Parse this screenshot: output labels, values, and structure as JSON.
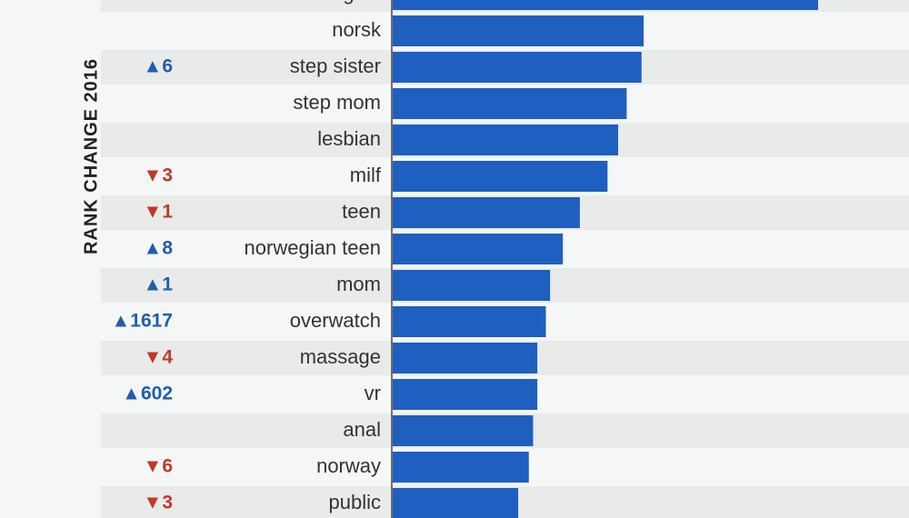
{
  "chart_data": {
    "type": "bar",
    "orientation": "horizontal",
    "ylabel": "RANK CHANGE 2016",
    "bar_color": "#1f5fbf",
    "row_band_color": "#e9eaea",
    "up_color": "#1f5fa8",
    "down_color": "#c0392b",
    "xlim": [
      0,
      100
    ],
    "rows": [
      {
        "category": "norwegian",
        "value": 100,
        "change_dir": "",
        "change": ""
      },
      {
        "category": "norsk",
        "value": 59,
        "change_dir": "",
        "change": ""
      },
      {
        "category": "step sister",
        "value": 58.5,
        "change_dir": "up",
        "change": "6"
      },
      {
        "category": "step mom",
        "value": 55,
        "change_dir": "",
        "change": ""
      },
      {
        "category": "lesbian",
        "value": 53,
        "change_dir": "",
        "change": ""
      },
      {
        "category": "milf",
        "value": 50.5,
        "change_dir": "down",
        "change": "3"
      },
      {
        "category": "teen",
        "value": 44,
        "change_dir": "down",
        "change": "1"
      },
      {
        "category": "norwegian teen",
        "value": 40,
        "change_dir": "up",
        "change": "8"
      },
      {
        "category": "mom",
        "value": 37,
        "change_dir": "up",
        "change": "1"
      },
      {
        "category": "overwatch",
        "value": 36,
        "change_dir": "up",
        "change": "1617"
      },
      {
        "category": "massage",
        "value": 34,
        "change_dir": "down",
        "change": "4"
      },
      {
        "category": "vr",
        "value": 34,
        "change_dir": "up",
        "change": "602"
      },
      {
        "category": "anal",
        "value": 33,
        "change_dir": "",
        "change": ""
      },
      {
        "category": "norway",
        "value": 32,
        "change_dir": "down",
        "change": "6"
      },
      {
        "category": "public",
        "value": 29.5,
        "change_dir": "down",
        "change": "3"
      }
    ]
  }
}
